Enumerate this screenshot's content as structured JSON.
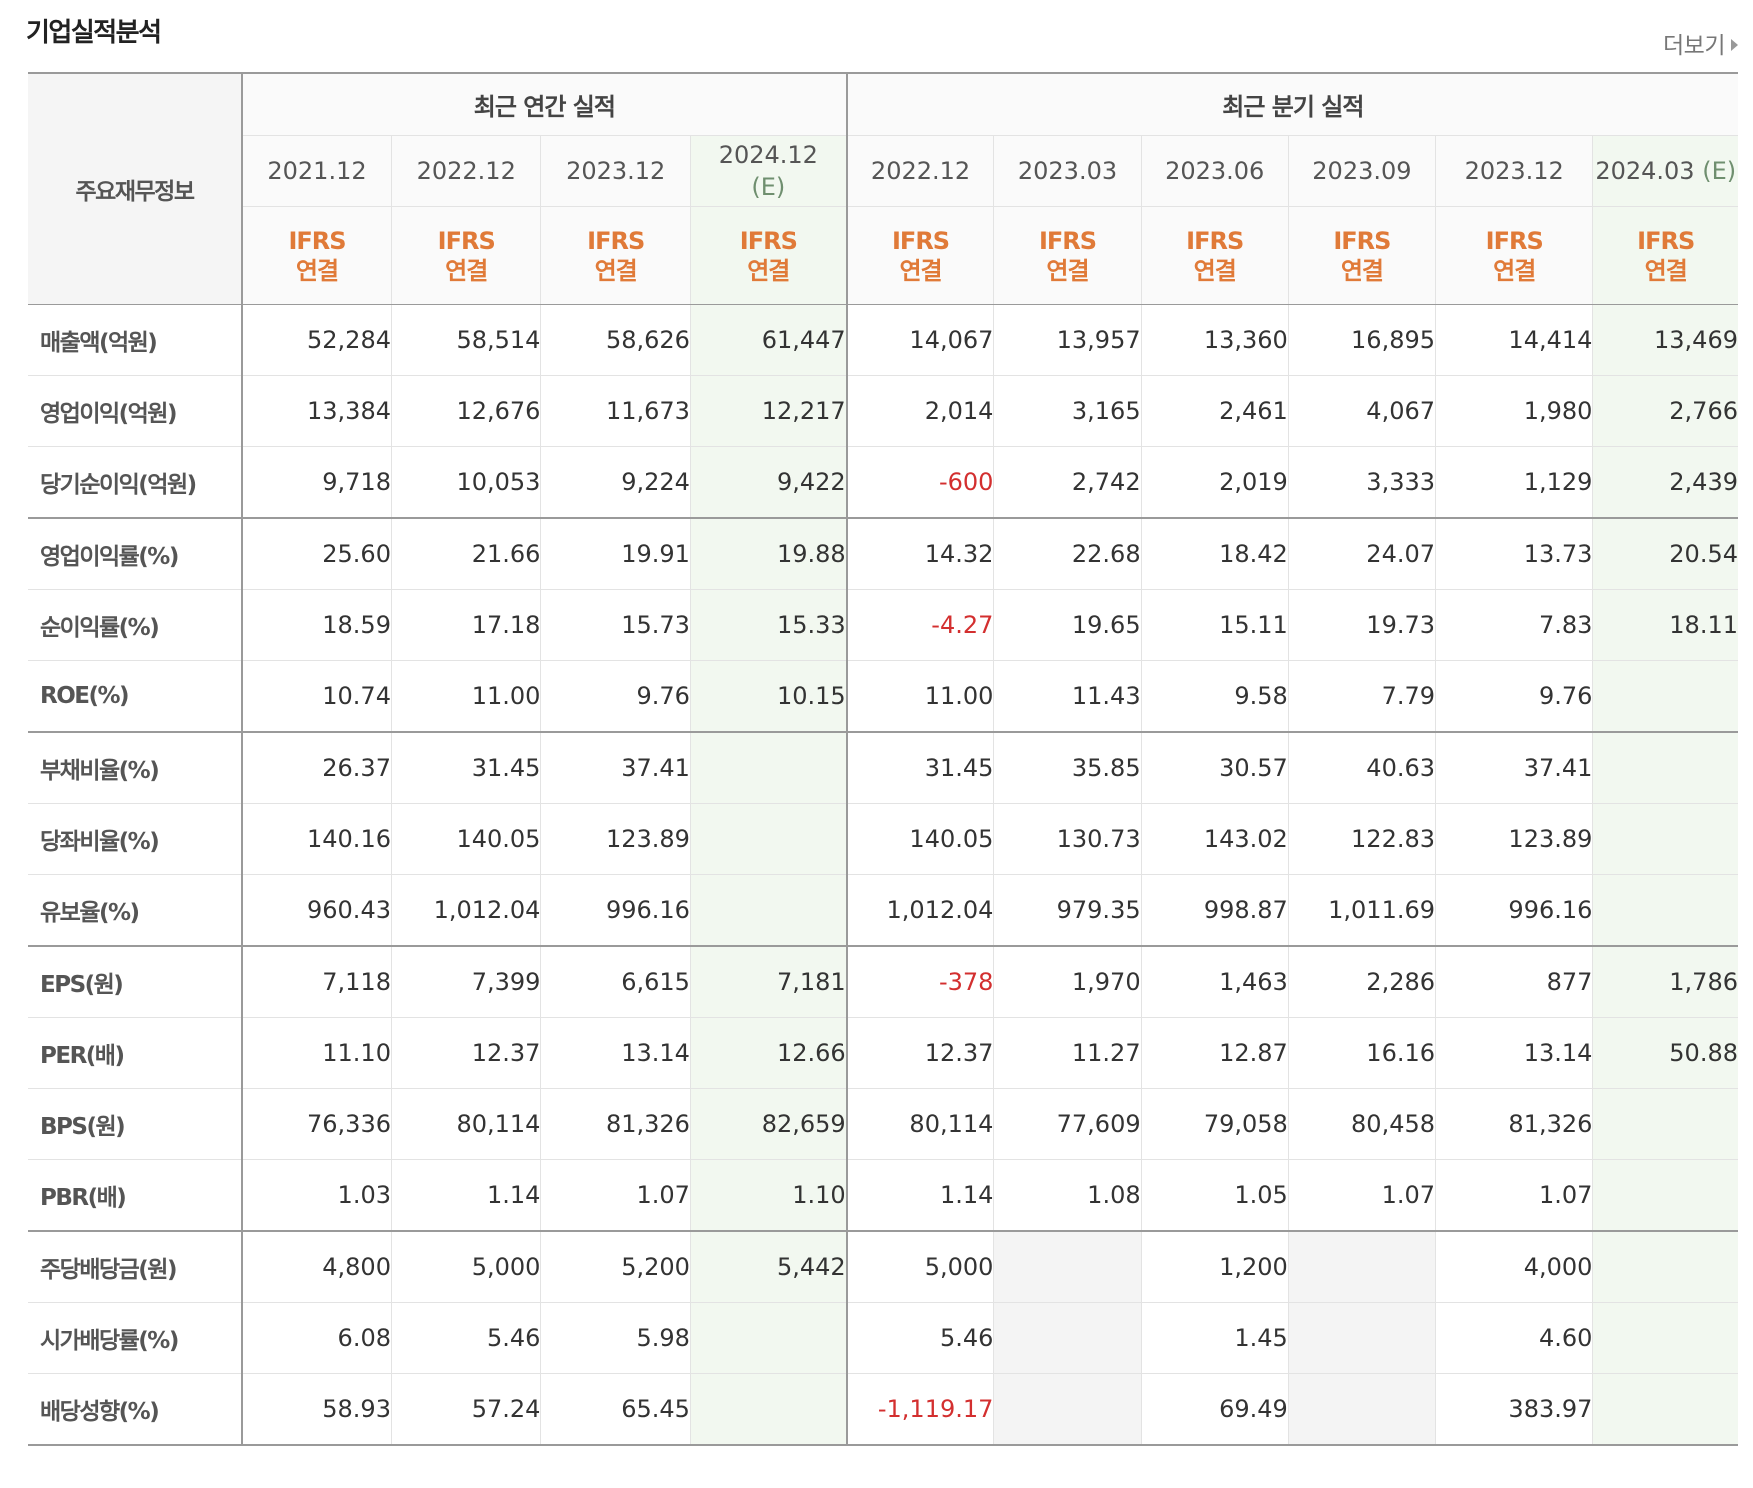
{
  "section_title": "기업실적분석",
  "more_label": "더보기",
  "header": {
    "row_label": "주요재무정보",
    "annual_group": "최근 연간 실적",
    "quarter_group": "최근 분기 실적",
    "periods": [
      {
        "label": "2021.12",
        "est": ""
      },
      {
        "label": "2022.12",
        "est": ""
      },
      {
        "label": "2023.12",
        "est": ""
      },
      {
        "label": "2024.12",
        "est": "(E)"
      },
      {
        "label": "2022.12",
        "est": ""
      },
      {
        "label": "2023.03",
        "est": ""
      },
      {
        "label": "2023.06",
        "est": ""
      },
      {
        "label": "2023.09",
        "est": ""
      },
      {
        "label": "2023.12",
        "est": ""
      },
      {
        "label": "2024.03",
        "est": "(E)"
      }
    ],
    "accounting": {
      "line1": "IFRS",
      "line2": "연결"
    }
  },
  "rows": [
    {
      "label": "매출액(억원)",
      "values": [
        "52,284",
        "58,514",
        "58,626",
        "61,447",
        "14,067",
        "13,957",
        "13,360",
        "16,895",
        "14,414",
        "13,469"
      ]
    },
    {
      "label": "영업이익(억원)",
      "values": [
        "13,384",
        "12,676",
        "11,673",
        "12,217",
        "2,014",
        "3,165",
        "2,461",
        "4,067",
        "1,980",
        "2,766"
      ]
    },
    {
      "label": "당기순이익(억원)",
      "values": [
        "9,718",
        "10,053",
        "9,224",
        "9,422",
        "-600",
        "2,742",
        "2,019",
        "3,333",
        "1,129",
        "2,439"
      ]
    },
    {
      "label": "영업이익률(%)",
      "values": [
        "25.60",
        "21.66",
        "19.91",
        "19.88",
        "14.32",
        "22.68",
        "18.42",
        "24.07",
        "13.73",
        "20.54"
      ]
    },
    {
      "label": "순이익률(%)",
      "values": [
        "18.59",
        "17.18",
        "15.73",
        "15.33",
        "-4.27",
        "19.65",
        "15.11",
        "19.73",
        "7.83",
        "18.11"
      ]
    },
    {
      "label": "ROE(%)",
      "values": [
        "10.74",
        "11.00",
        "9.76",
        "10.15",
        "11.00",
        "11.43",
        "9.58",
        "7.79",
        "9.76",
        ""
      ]
    },
    {
      "label": "부채비율(%)",
      "values": [
        "26.37",
        "31.45",
        "37.41",
        "",
        "31.45",
        "35.85",
        "30.57",
        "40.63",
        "37.41",
        ""
      ]
    },
    {
      "label": "당좌비율(%)",
      "values": [
        "140.16",
        "140.05",
        "123.89",
        "",
        "140.05",
        "130.73",
        "143.02",
        "122.83",
        "123.89",
        ""
      ]
    },
    {
      "label": "유보율(%)",
      "values": [
        "960.43",
        "1,012.04",
        "996.16",
        "",
        "1,012.04",
        "979.35",
        "998.87",
        "1,011.69",
        "996.16",
        ""
      ]
    },
    {
      "label": "EPS(원)",
      "values": [
        "7,118",
        "7,399",
        "6,615",
        "7,181",
        "-378",
        "1,970",
        "1,463",
        "2,286",
        "877",
        "1,786"
      ]
    },
    {
      "label": "PER(배)",
      "values": [
        "11.10",
        "12.37",
        "13.14",
        "12.66",
        "12.37",
        "11.27",
        "12.87",
        "16.16",
        "13.14",
        "50.88"
      ]
    },
    {
      "label": "BPS(원)",
      "values": [
        "76,336",
        "80,114",
        "81,326",
        "82,659",
        "80,114",
        "77,609",
        "79,058",
        "80,458",
        "81,326",
        ""
      ]
    },
    {
      "label": "PBR(배)",
      "values": [
        "1.03",
        "1.14",
        "1.07",
        "1.10",
        "1.14",
        "1.08",
        "1.05",
        "1.07",
        "1.07",
        ""
      ]
    },
    {
      "label": "주당배당금(원)",
      "values": [
        "4,800",
        "5,000",
        "5,200",
        "5,442",
        "5,000",
        "",
        "1,200",
        "",
        "4,000",
        ""
      ]
    },
    {
      "label": "시가배당률(%)",
      "values": [
        "6.08",
        "5.46",
        "5.98",
        "",
        "5.46",
        "",
        "1.45",
        "",
        "4.60",
        ""
      ]
    },
    {
      "label": "배당성향(%)",
      "values": [
        "58.93",
        "57.24",
        "65.45",
        "",
        "-1,119.17",
        "",
        "69.49",
        "",
        "383.97",
        ""
      ]
    }
  ],
  "colors": {
    "negative": "#d32f2f",
    "accounting_label": "#e07a38",
    "estimate_bg": "#f2f8f0",
    "estimate_text": "#6f8f6f"
  }
}
